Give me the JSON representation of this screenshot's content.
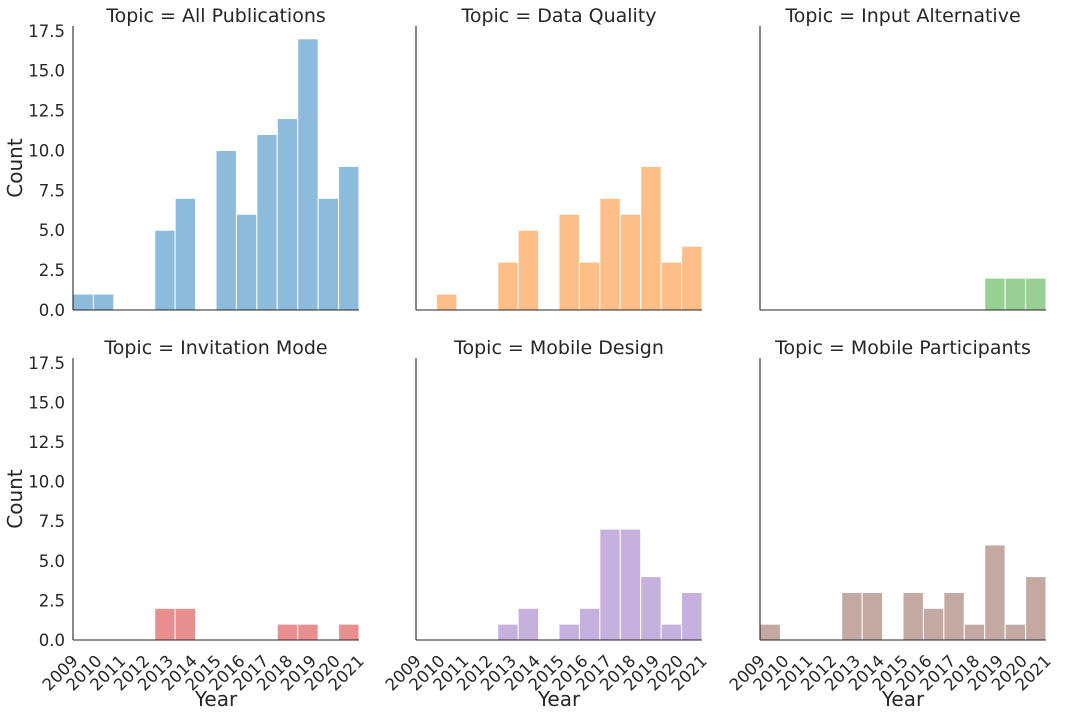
{
  "chart_data": {
    "type": "bar",
    "facet_title_prefix": "Topic = ",
    "xlabel": "Year",
    "ylabel": "Count",
    "x_tick_labels": [
      "2009",
      "2010",
      "2011",
      "2012",
      "2013",
      "2014",
      "2015",
      "2016",
      "2017",
      "2018",
      "2019",
      "2020",
      "2021"
    ],
    "bin_edges": [
      2009,
      2009.857,
      2010.714,
      2011.571,
      2012.429,
      2013.286,
      2014.143,
      2015,
      2015.857,
      2016.714,
      2017.571,
      2018.429,
      2019.286,
      2020.143,
      2021
    ],
    "y_ticks": [
      "0.0",
      "2.5",
      "5.0",
      "7.5",
      "10.0",
      "12.5",
      "15.0",
      "17.5"
    ],
    "ylim": [
      0,
      17.8
    ],
    "grid": false,
    "panels": [
      {
        "name": "All Publications",
        "color": "#8dbbdb",
        "values": [
          1,
          1,
          0,
          0,
          5,
          7,
          0,
          10,
          6,
          11,
          12,
          17,
          7,
          9
        ]
      },
      {
        "name": "Data Quality",
        "color": "#fdbf87",
        "values": [
          0,
          1,
          0,
          0,
          3,
          5,
          0,
          6,
          3,
          7,
          6,
          9,
          3,
          4
        ]
      },
      {
        "name": "Input Alternative",
        "color": "#98d094",
        "values": [
          0,
          0,
          0,
          0,
          0,
          0,
          0,
          0,
          0,
          0,
          0,
          2,
          2,
          2
        ]
      },
      {
        "name": "Invitation Mode",
        "color": "#ea8f8f",
        "values": [
          0,
          0,
          0,
          0,
          2,
          2,
          0,
          0,
          0,
          0,
          1,
          1,
          0,
          1
        ]
      },
      {
        "name": "Mobile Design",
        "color": "#c6b0de",
        "values": [
          0,
          0,
          0,
          0,
          1,
          2,
          0,
          1,
          2,
          7,
          7,
          4,
          1,
          3
        ]
      },
      {
        "name": "Mobile Participants",
        "color": "#c4a9a3",
        "values": [
          1,
          0,
          0,
          0,
          3,
          3,
          0,
          3,
          2,
          3,
          1,
          6,
          1,
          4
        ]
      }
    ]
  }
}
